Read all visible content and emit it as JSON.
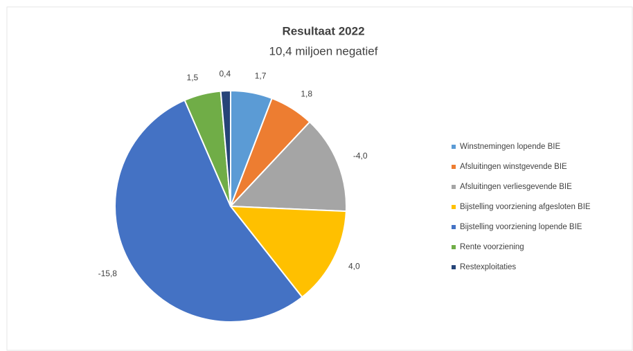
{
  "chart_data": {
    "type": "pie",
    "title": "Resultaat 2022",
    "subtitle": "10,4 miljoen negatief",
    "categories": [
      "Winstnemingen lopende BIE",
      "Afsluitingen winstgevende BIE",
      "Afsluitingen verliesgevende BIE",
      "Bijstelling voorziening afgesloten BIE",
      "Bijstelling voorziening lopende BIE",
      "Rente voorziening",
      "Restexploitaties"
    ],
    "values": [
      1.7,
      1.8,
      -4.0,
      4.0,
      -15.8,
      1.5,
      0.4
    ],
    "value_labels": [
      "1,7",
      "1,8",
      "-4,0",
      "4,0",
      "-15,8",
      "1,5",
      "0,4"
    ],
    "colors": [
      "#5b9bd5",
      "#ed7d31",
      "#a5a5a5",
      "#ffc000",
      "#4472c4",
      "#70ad47",
      "#264478"
    ],
    "legend": "right"
  }
}
